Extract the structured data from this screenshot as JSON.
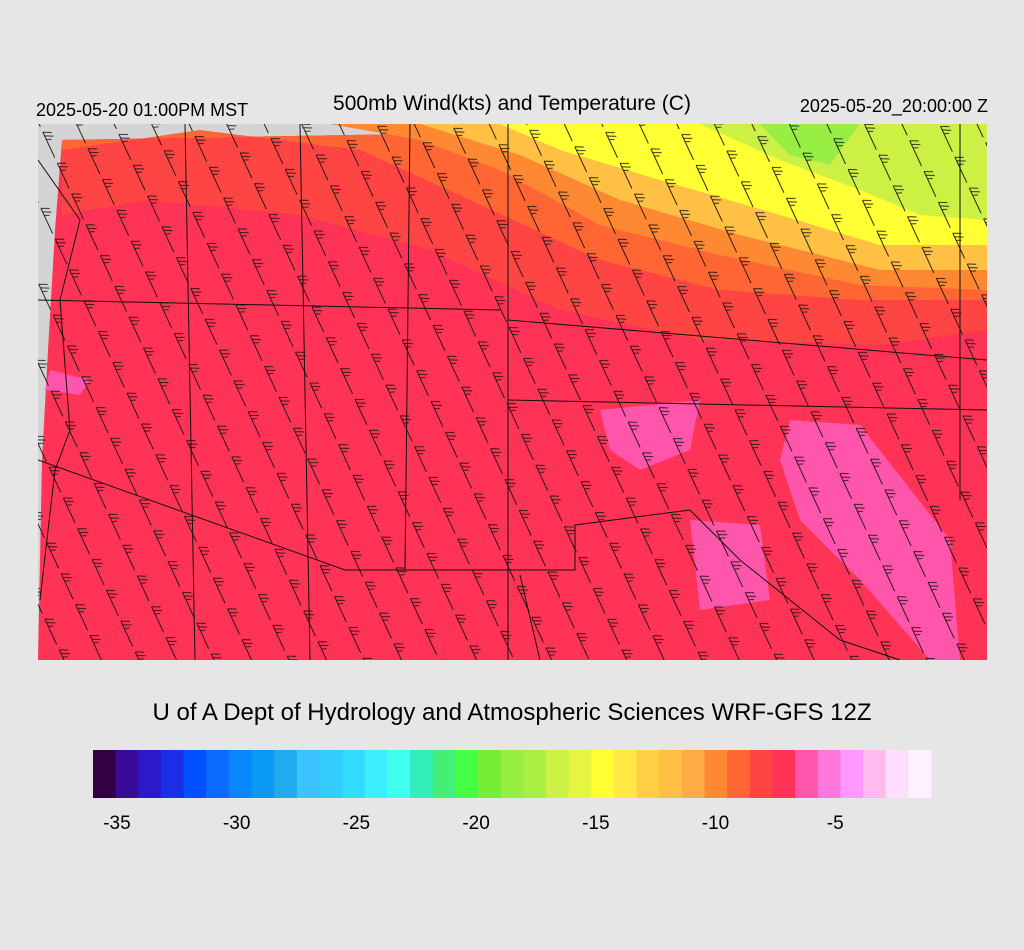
{
  "header": {
    "left": "2025-05-20 01:00PM MST",
    "title": "500mb Wind(kts) and Temperature (C)",
    "right": "2025-05-20_20:00:00 Z"
  },
  "credit": "U of A Dept of Hydrology and Atmospheric Sciences WRF-GFS 12Z",
  "colorbar": {
    "range": [
      -36,
      -1
    ],
    "ticks": [
      -35,
      -30,
      -25,
      -20,
      -15,
      -10,
      -5
    ],
    "colors": [
      "#330044",
      "#3a0a99",
      "#2a1acc",
      "#1a2ee6",
      "#0050ff",
      "#0a6cff",
      "#0a86ff",
      "#0a9af5",
      "#22aaee",
      "#3cc4ff",
      "#33ccff",
      "#33dcff",
      "#3ceeff",
      "#40ffee",
      "#33eebb",
      "#44ee77",
      "#44ff44",
      "#77ee33",
      "#99ee44",
      "#aaf044",
      "#ccf044",
      "#e6f540",
      "#ffff33",
      "#ffe844",
      "#ffd044",
      "#ffc044",
      "#ffaa44",
      "#ff8833",
      "#ff6633",
      "#ff4444",
      "#ff3355",
      "#ff55aa",
      "#ff77dd",
      "#ff99ff",
      "#ffbbee",
      "#ffddff",
      "#fff0ff"
    ]
  }
}
